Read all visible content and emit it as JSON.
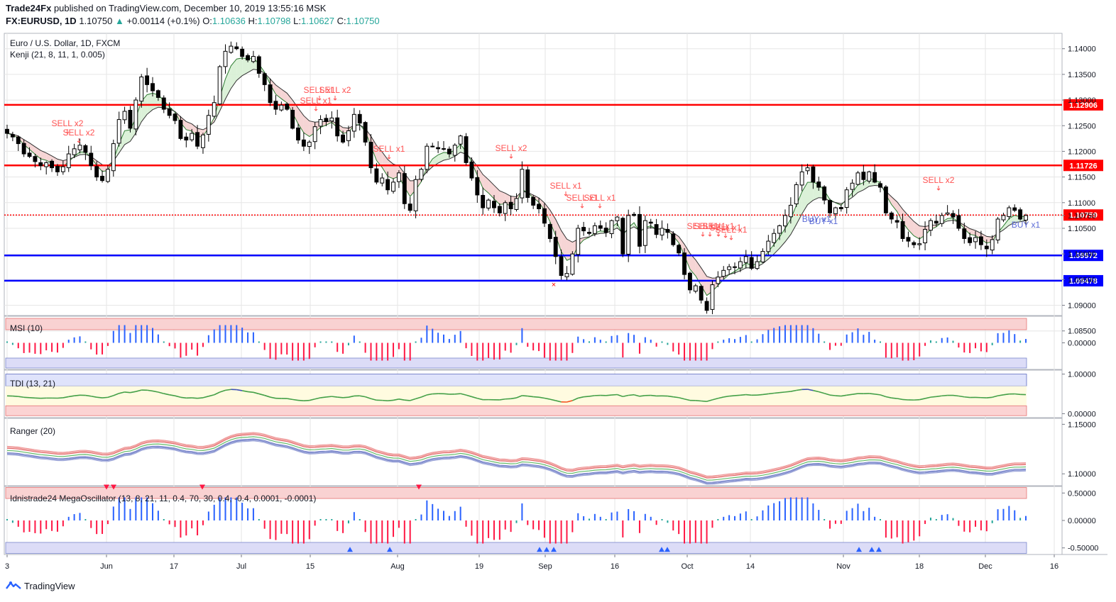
{
  "header": {
    "publisher": "Trade24Fx",
    "published_text": "published on TradingView.com, December 10, 2019 13:55:16 MSK",
    "symbol": "FX:EURUSD, 1D",
    "last": "1.10750",
    "change": "+0.00114 (+0.1%)",
    "o_label": "O:",
    "o": "1.10636",
    "h_label": "H:",
    "h": "1.10798",
    "l_label": "L:",
    "l": "1.10627",
    "c_label": "C:",
    "c": "1.10750"
  },
  "chart_title": "Euro / U.S. Dollar, 1D, FXCM",
  "indicator_main": "Kenji (21, 8, 11, 1, 0.005)",
  "footer_brand": "TradingView",
  "colors": {
    "bull": "#ffffff",
    "bear": "#000000",
    "red_level": "#ff0000",
    "blue_level": "#0000ff",
    "grid": "#e6e6e6",
    "sell": "#ff5252",
    "buy": "#5b6bd6"
  },
  "chart_data": [
    {
      "type": "candlestick",
      "panel": "price",
      "ylim": [
        1.088,
        1.143
      ],
      "y_ticks": [
        "1.14000",
        "1.13500",
        "1.13000",
        "1.12500",
        "1.12000",
        "1.11500",
        "1.11000",
        "1.10750",
        "1.10500",
        "1.10000",
        "1.09500",
        "1.09000",
        "1.08500"
      ],
      "x_ticks": [
        "3",
        "Jun",
        "17",
        "Jul",
        "15",
        "Aug",
        "19",
        "Sep",
        "16",
        "Oct",
        "14",
        "Nov",
        "18",
        "Dec",
        "16"
      ],
      "levels": [
        {
          "value": 1.12906,
          "label": "1.12906",
          "color": "#ff0000"
        },
        {
          "value": 1.11726,
          "label": "1.11726",
          "color": "#ff0000"
        },
        {
          "value": 1.10759,
          "label": "1.10759",
          "color": "#ff0000",
          "dotted": true
        },
        {
          "value": 1.09972,
          "label": "1.09972",
          "color": "#0000ff"
        },
        {
          "value": 1.09478,
          "label": "1.09478",
          "color": "#0000ff"
        }
      ],
      "closes": [
        1.1235,
        1.1228,
        1.1215,
        1.1195,
        1.119,
        1.118,
        1.1172,
        1.1178,
        1.1168,
        1.116,
        1.117,
        1.1195,
        1.1205,
        1.1212,
        1.1198,
        1.1172,
        1.115,
        1.1143,
        1.1165,
        1.1215,
        1.1262,
        1.1278,
        1.1245,
        1.13,
        1.1345,
        1.133,
        1.1318,
        1.1305,
        1.1282,
        1.127,
        1.126,
        1.1225,
        1.1222,
        1.1235,
        1.121,
        1.1232,
        1.127,
        1.1295,
        1.1365,
        1.1395,
        1.1405,
        1.14,
        1.1385,
        1.1378,
        1.1385,
        1.1352,
        1.133,
        1.1295,
        1.1282,
        1.129,
        1.1282,
        1.1245,
        1.1222,
        1.121,
        1.1218,
        1.1248,
        1.1262,
        1.1258,
        1.1265,
        1.123,
        1.1218,
        1.124,
        1.1272,
        1.1255,
        1.1218,
        1.1168,
        1.114,
        1.1148,
        1.1125,
        1.114,
        1.1158,
        1.1098,
        1.1085,
        1.1145,
        1.1165,
        1.121,
        1.121,
        1.1205,
        1.1205,
        1.1195,
        1.1212,
        1.123,
        1.1178,
        1.1148,
        1.1115,
        1.109,
        1.1105,
        1.109,
        1.108,
        1.11,
        1.1088,
        1.1108,
        1.1165,
        1.111,
        1.1095,
        1.1088,
        1.106,
        1.103,
        1.0995,
        1.0958,
        1.0962,
        1.1,
        1.105,
        1.1045,
        1.104,
        1.1055,
        1.105,
        1.1042,
        1.1065,
        1.1072,
        1.1,
        1.1075,
        1.1075,
        1.1015,
        1.1065,
        1.106,
        1.1038,
        1.105,
        1.1042,
        1.1018,
        1.1002,
        1.096,
        1.093,
        1.0938,
        1.091,
        1.089,
        1.094,
        1.0955,
        1.0968,
        1.0975,
        1.0975,
        1.0985,
        1.0995,
        1.0972,
        1.0985,
        1.1005,
        1.1025,
        1.104,
        1.1055,
        1.1075,
        1.1095,
        1.1135,
        1.116,
        1.1168,
        1.114,
        1.113,
        1.1105,
        1.108,
        1.109,
        1.1088,
        1.1125,
        1.1138,
        1.1158,
        1.1145,
        1.116,
        1.114,
        1.113,
        1.108,
        1.1068,
        1.1062,
        1.103,
        1.1025,
        1.1018,
        1.102,
        1.1048,
        1.1065,
        1.106,
        1.1075,
        1.108,
        1.1072,
        1.105,
        1.103,
        1.1022,
        1.1032,
        1.1018,
        1.101,
        1.1028,
        1.1068,
        1.1075,
        1.109,
        1.1085,
        1.1068,
        1.1075
      ],
      "signals": [
        {
          "text": "SELL x2"
        },
        {
          "text": "SELL x2"
        },
        {
          "text": "SELL x1"
        },
        {
          "text": "SELL x2"
        },
        {
          "text": "SELL x1"
        },
        {
          "text": "SELL x1"
        },
        {
          "text": "SELL x2"
        },
        {
          "text": "SELL x1"
        },
        {
          "text": "SELL x1"
        },
        {
          "text": "SELL x1"
        },
        {
          "text": "SELL x1"
        },
        {
          "text": "SELL x1"
        },
        {
          "text": "SELL x1"
        },
        {
          "text": "SELL x1"
        },
        {
          "text": "SELL x1"
        },
        {
          "text": "BUY x1"
        },
        {
          "text": "BUY x1"
        },
        {
          "text": "SELL x2"
        },
        {
          "text": "BUY x1"
        }
      ]
    },
    {
      "type": "histogram",
      "panel": "msi",
      "label": "MSI (10)",
      "ylim": [
        -0.03,
        0.03
      ],
      "y_ticks": [
        "0.00000"
      ]
    },
    {
      "type": "line",
      "panel": "tdi",
      "label": "TDI (13, 21)",
      "ylim": [
        -0.1,
        1.1
      ],
      "y_ticks": [
        "1.00000",
        "0.00000"
      ]
    },
    {
      "type": "line",
      "panel": "ranger",
      "label": "Ranger (20)",
      "ylim": [
        1.088,
        1.156
      ],
      "y_ticks": [
        "1.15000",
        "1.10000"
      ]
    },
    {
      "type": "histogram",
      "panel": "mega",
      "label": "Idnistrade24 MegaOscillator (13, 8, 21, 11, 0.4, 70, 30, 0.4, -0.4, 0.0001, -0.0001)",
      "ylim": [
        -0.62,
        0.62
      ],
      "y_ticks": [
        "0.50000",
        "0.00000",
        "-0.50000"
      ]
    }
  ]
}
